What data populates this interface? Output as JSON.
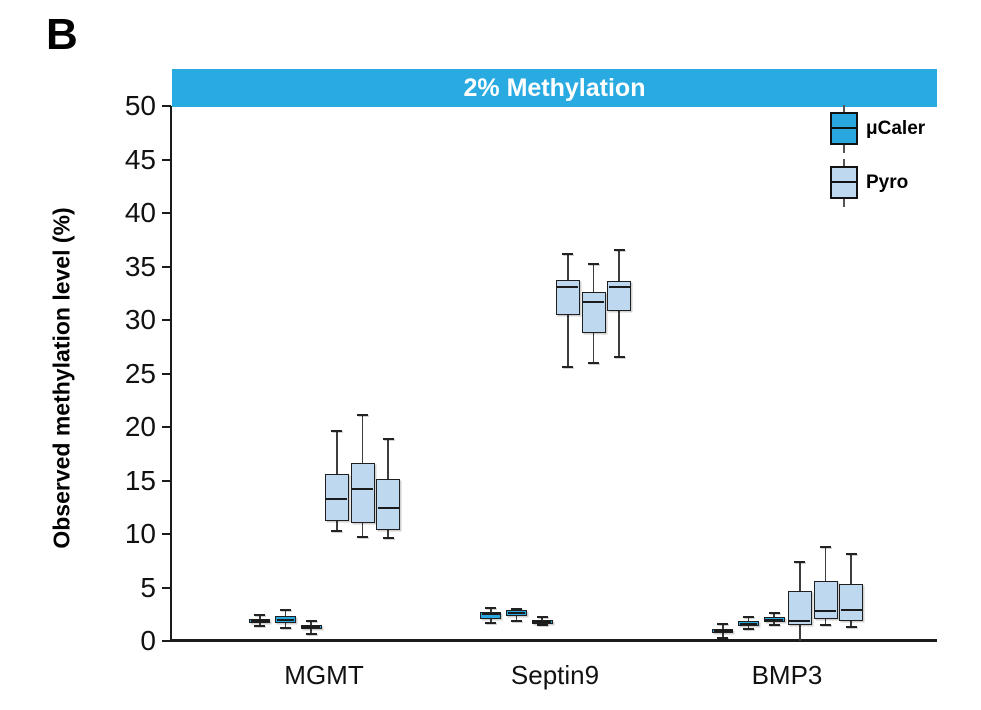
{
  "panel_label": "B",
  "banner": {
    "bg_color": "#29ABE2",
    "text_color": "#FFFFFF"
  },
  "chart_data": {
    "type": "boxplot",
    "title": "2% Methylation",
    "ylabel": "Observed methylation level (%)",
    "xlabel": "",
    "ylim": [
      0,
      50
    ],
    "yticks": [
      0,
      5,
      10,
      15,
      20,
      25,
      30,
      35,
      40,
      45,
      50
    ],
    "grid": false,
    "legend_position": "top-right",
    "categories": [
      "MGMT",
      "Septin9",
      "BMP3"
    ],
    "series": [
      {
        "name": "μCaler",
        "color": "#29A8DF",
        "groups": [
          [
            {
              "lo": 1.4,
              "q1": 1.7,
              "med": 1.9,
              "q3": 2.1,
              "hi": 2.4
            },
            {
              "lo": 1.2,
              "q1": 1.7,
              "med": 2.0,
              "q3": 2.3,
              "hi": 2.9
            },
            {
              "lo": 0.7,
              "q1": 1.1,
              "med": 1.3,
              "q3": 1.5,
              "hi": 1.9
            }
          ],
          [
            {
              "lo": 1.7,
              "q1": 2.1,
              "med": 2.5,
              "q3": 2.7,
              "hi": 3.1
            },
            {
              "lo": 1.9,
              "q1": 2.3,
              "med": 2.6,
              "q3": 2.9,
              "hi": 3.0
            },
            {
              "lo": 1.5,
              "q1": 1.6,
              "med": 1.8,
              "q3": 2.0,
              "hi": 2.2
            }
          ],
          [
            {
              "lo": 0.3,
              "q1": 0.7,
              "med": 0.9,
              "q3": 1.1,
              "hi": 1.6
            },
            {
              "lo": 1.1,
              "q1": 1.4,
              "med": 1.6,
              "q3": 1.9,
              "hi": 2.2
            },
            {
              "lo": 1.5,
              "q1": 1.8,
              "med": 2.0,
              "q3": 2.2,
              "hi": 2.6
            }
          ]
        ]
      },
      {
        "name": "Pyro",
        "color": "#BDD8EF",
        "groups": [
          [
            {
              "lo": 10.3,
              "q1": 11.2,
              "med": 13.3,
              "q3": 15.6,
              "hi": 19.6
            },
            {
              "lo": 9.7,
              "q1": 11.0,
              "med": 14.2,
              "q3": 16.6,
              "hi": 21.1
            },
            {
              "lo": 9.6,
              "q1": 10.4,
              "med": 12.4,
              "q3": 15.1,
              "hi": 18.9
            }
          ],
          [
            {
              "lo": 25.6,
              "q1": 30.5,
              "med": 33.1,
              "q3": 33.7,
              "hi": 36.2
            },
            {
              "lo": 26.0,
              "q1": 28.8,
              "med": 31.7,
              "q3": 32.6,
              "hi": 35.2
            },
            {
              "lo": 26.5,
              "q1": 30.8,
              "med": 33.1,
              "q3": 33.6,
              "hi": 36.5
            }
          ],
          [
            {
              "lo": 0.0,
              "q1": 1.5,
              "med": 1.9,
              "q3": 4.7,
              "hi": 7.4
            },
            {
              "lo": 1.5,
              "q1": 2.1,
              "med": 2.8,
              "q3": 5.6,
              "hi": 8.8
            },
            {
              "lo": 1.3,
              "q1": 1.9,
              "med": 2.9,
              "q3": 5.3,
              "hi": 8.1
            }
          ]
        ]
      }
    ]
  }
}
